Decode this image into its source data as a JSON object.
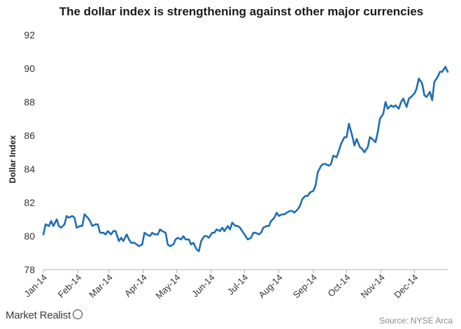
{
  "chart_data": {
    "type": "line",
    "title": "The dollar index is strengthening against other major currencies",
    "ylabel": "Dollar Index",
    "xlabel": "",
    "ylim": [
      78,
      92
    ],
    "yticks": [
      78,
      80,
      82,
      84,
      86,
      88,
      90,
      92
    ],
    "xticks": [
      "Jan-14",
      "Feb-14",
      "Mar-14",
      "Apr-14",
      "May-14",
      "Jun-14",
      "Jul-14",
      "Aug-14",
      "Sep-14",
      "Oct-14",
      "Nov-14",
      "Dec-14"
    ],
    "grid": false,
    "legend": "none",
    "series": [
      {
        "color": "#1f6db3",
        "points": [
          [
            "2014-01-01",
            80.1
          ],
          [
            "2014-01-03",
            80.7
          ],
          [
            "2014-01-06",
            80.6
          ],
          [
            "2014-01-08",
            80.9
          ],
          [
            "2014-01-10",
            80.6
          ],
          [
            "2014-01-13",
            81.0
          ],
          [
            "2014-01-15",
            80.6
          ],
          [
            "2014-01-17",
            80.5
          ],
          [
            "2014-01-20",
            80.7
          ],
          [
            "2014-01-22",
            81.2
          ],
          [
            "2014-01-24",
            81.1
          ],
          [
            "2014-01-27",
            81.2
          ],
          [
            "2014-01-29",
            81.1
          ],
          [
            "2014-01-31",
            80.5
          ],
          [
            "2014-02-03",
            80.6
          ],
          [
            "2014-02-05",
            80.6
          ],
          [
            "2014-02-07",
            81.3
          ],
          [
            "2014-02-10",
            81.1
          ],
          [
            "2014-02-12",
            80.9
          ],
          [
            "2014-02-14",
            80.6
          ],
          [
            "2014-02-17",
            80.7
          ],
          [
            "2014-02-19",
            80.7
          ],
          [
            "2014-02-21",
            80.2
          ],
          [
            "2014-02-24",
            80.2
          ],
          [
            "2014-02-26",
            80.1
          ],
          [
            "2014-02-28",
            80.3
          ],
          [
            "2014-03-03",
            80.1
          ],
          [
            "2014-03-05",
            80.3
          ],
          [
            "2014-03-07",
            80.3
          ],
          [
            "2014-03-10",
            79.7
          ],
          [
            "2014-03-12",
            79.9
          ],
          [
            "2014-03-14",
            79.7
          ],
          [
            "2014-03-17",
            80.1
          ],
          [
            "2014-03-19",
            79.8
          ],
          [
            "2014-03-21",
            79.6
          ],
          [
            "2014-03-24",
            79.6
          ],
          [
            "2014-03-26",
            79.5
          ],
          [
            "2014-03-28",
            79.4
          ],
          [
            "2014-03-31",
            79.5
          ],
          [
            "2014-04-02",
            80.2
          ],
          [
            "2014-04-04",
            80.1
          ],
          [
            "2014-04-07",
            80.0
          ],
          [
            "2014-04-09",
            80.2
          ],
          [
            "2014-04-11",
            80.1
          ],
          [
            "2014-04-14",
            80.1
          ],
          [
            "2014-04-16",
            80.4
          ],
          [
            "2014-04-18",
            80.3
          ],
          [
            "2014-04-21",
            80.2
          ],
          [
            "2014-04-23",
            79.5
          ],
          [
            "2014-04-25",
            79.4
          ],
          [
            "2014-04-28",
            79.5
          ],
          [
            "2014-04-30",
            79.8
          ],
          [
            "2014-05-02",
            79.9
          ],
          [
            "2014-05-05",
            79.8
          ],
          [
            "2014-05-07",
            80.0
          ],
          [
            "2014-05-09",
            79.8
          ],
          [
            "2014-05-12",
            79.8
          ],
          [
            "2014-05-14",
            79.5
          ],
          [
            "2014-05-16",
            79.6
          ],
          [
            "2014-05-19",
            79.2
          ],
          [
            "2014-05-21",
            79.1
          ],
          [
            "2014-05-23",
            79.7
          ],
          [
            "2014-05-26",
            80.0
          ],
          [
            "2014-05-28",
            80.0
          ],
          [
            "2014-05-30",
            79.9
          ],
          [
            "2014-06-02",
            80.2
          ],
          [
            "2014-06-04",
            80.2
          ],
          [
            "2014-06-06",
            80.4
          ],
          [
            "2014-06-09",
            80.3
          ],
          [
            "2014-06-11",
            80.5
          ],
          [
            "2014-06-13",
            80.3
          ],
          [
            "2014-06-16",
            80.6
          ],
          [
            "2014-06-18",
            80.4
          ],
          [
            "2014-06-20",
            80.8
          ],
          [
            "2014-06-23",
            80.6
          ],
          [
            "2014-06-25",
            80.6
          ],
          [
            "2014-06-27",
            80.5
          ],
          [
            "2014-06-30",
            80.2
          ],
          [
            "2014-07-02",
            80.0
          ],
          [
            "2014-07-04",
            79.8
          ],
          [
            "2014-07-07",
            79.9
          ],
          [
            "2014-07-09",
            80.2
          ],
          [
            "2014-07-11",
            80.2
          ],
          [
            "2014-07-14",
            80.1
          ],
          [
            "2014-07-16",
            80.2
          ],
          [
            "2014-07-18",
            80.5
          ],
          [
            "2014-07-21",
            80.6
          ],
          [
            "2014-07-23",
            80.6
          ],
          [
            "2014-07-25",
            80.9
          ],
          [
            "2014-07-28",
            81.1
          ],
          [
            "2014-07-30",
            81.4
          ],
          [
            "2014-08-01",
            81.2
          ],
          [
            "2014-08-04",
            81.3
          ],
          [
            "2014-08-06",
            81.3
          ],
          [
            "2014-08-08",
            81.4
          ],
          [
            "2014-08-11",
            81.5
          ],
          [
            "2014-08-13",
            81.5
          ],
          [
            "2014-08-15",
            81.4
          ],
          [
            "2014-08-18",
            81.6
          ],
          [
            "2014-08-20",
            81.8
          ],
          [
            "2014-08-22",
            82.2
          ],
          [
            "2014-08-25",
            82.4
          ],
          [
            "2014-08-27",
            82.4
          ],
          [
            "2014-08-29",
            82.6
          ],
          [
            "2014-09-01",
            82.7
          ],
          [
            "2014-09-03",
            83.0
          ],
          [
            "2014-09-05",
            83.8
          ],
          [
            "2014-09-08",
            84.2
          ],
          [
            "2014-09-10",
            84.3
          ],
          [
            "2014-09-12",
            84.3
          ],
          [
            "2014-09-15",
            84.2
          ],
          [
            "2014-09-17",
            84.3
          ],
          [
            "2014-09-19",
            84.8
          ],
          [
            "2014-09-22",
            84.7
          ],
          [
            "2014-09-24",
            85.1
          ],
          [
            "2014-09-26",
            85.5
          ],
          [
            "2014-09-29",
            85.9
          ],
          [
            "2014-10-01",
            85.9
          ],
          [
            "2014-10-03",
            86.7
          ],
          [
            "2014-10-06",
            86.0
          ],
          [
            "2014-10-08",
            85.4
          ],
          [
            "2014-10-10",
            85.8
          ],
          [
            "2014-10-13",
            85.3
          ],
          [
            "2014-10-15",
            85.2
          ],
          [
            "2014-10-17",
            85.0
          ],
          [
            "2014-10-20",
            85.3
          ],
          [
            "2014-10-22",
            85.9
          ],
          [
            "2014-10-24",
            85.8
          ],
          [
            "2014-10-27",
            85.6
          ],
          [
            "2014-10-29",
            86.2
          ],
          [
            "2014-10-31",
            87.0
          ],
          [
            "2014-11-03",
            87.3
          ],
          [
            "2014-11-05",
            88.0
          ],
          [
            "2014-11-07",
            87.6
          ],
          [
            "2014-11-10",
            87.8
          ],
          [
            "2014-11-12",
            87.7
          ],
          [
            "2014-11-14",
            87.8
          ],
          [
            "2014-11-17",
            87.6
          ],
          [
            "2014-11-19",
            88.0
          ],
          [
            "2014-11-21",
            88.2
          ],
          [
            "2014-11-24",
            87.7
          ],
          [
            "2014-11-26",
            88.2
          ],
          [
            "2014-11-28",
            88.3
          ],
          [
            "2014-12-01",
            88.5
          ],
          [
            "2014-12-03",
            88.8
          ],
          [
            "2014-12-05",
            89.4
          ],
          [
            "2014-12-08",
            89.1
          ],
          [
            "2014-12-10",
            88.4
          ],
          [
            "2014-12-12",
            88.3
          ],
          [
            "2014-12-15",
            88.6
          ],
          [
            "2014-12-17",
            88.1
          ],
          [
            "2014-12-19",
            89.2
          ],
          [
            "2014-12-22",
            89.5
          ],
          [
            "2014-12-24",
            89.8
          ],
          [
            "2014-12-26",
            89.8
          ],
          [
            "2014-12-29",
            90.1
          ],
          [
            "2014-12-31",
            89.8
          ]
        ]
      }
    ]
  },
  "footer": {
    "brand": "Market Realist",
    "source": "Source: NYSE Arca"
  }
}
